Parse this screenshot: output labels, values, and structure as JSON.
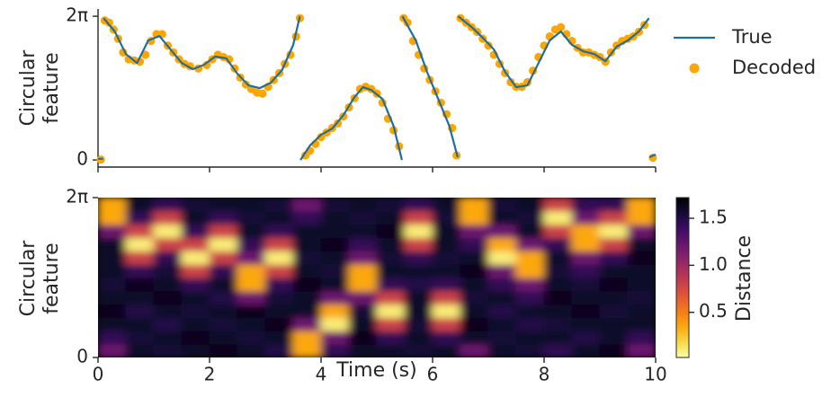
{
  "chart_data": [
    {
      "type": "line",
      "ylabel": [
        "Circular",
        "feature"
      ],
      "xlim": [
        0,
        10
      ],
      "xticks": [
        0,
        2,
        4,
        6,
        8,
        10
      ],
      "ylim": [
        -0.31,
        6.6
      ],
      "yticks": [
        0,
        {
          "value": 6.283,
          "label": "2π"
        }
      ],
      "legend": "outside upper right",
      "series": [
        {
          "name": "True",
          "type": "line",
          "color": "#1f6e9f",
          "x": [
            0.0,
            0.09,
            null,
            0.1,
            0.3,
            0.5,
            0.7,
            0.9,
            1.1,
            1.3,
            1.5,
            1.7,
            1.9,
            2.1,
            2.3,
            2.5,
            2.7,
            2.9,
            3.1,
            3.3,
            3.5,
            3.62,
            null,
            3.63,
            3.8,
            4.0,
            4.2,
            4.4,
            4.6,
            4.75,
            4.9,
            5.1,
            5.3,
            5.45,
            null,
            5.46,
            5.7,
            5.9,
            6.1,
            6.3,
            6.45,
            null,
            6.46,
            6.7,
            6.9,
            7.1,
            7.3,
            7.5,
            7.7,
            7.9,
            8.1,
            8.3,
            8.5,
            8.7,
            8.9,
            9.1,
            9.3,
            9.5,
            9.7,
            9.88,
            null,
            9.89,
            10.0
          ],
          "values": [
            0.05,
            0.05,
            null,
            6.2,
            5.62,
            4.63,
            4.24,
            5.22,
            5.42,
            4.83,
            4.24,
            3.97,
            4.16,
            4.52,
            4.44,
            3.77,
            3.26,
            3.14,
            3.38,
            3.93,
            5.03,
            6.28,
            null,
            0.0,
            0.63,
            1.1,
            1.37,
            1.96,
            2.75,
            3.18,
            3.06,
            2.67,
            1.49,
            0.0,
            null,
            6.28,
            5.22,
            3.85,
            2.67,
            1.49,
            0.12,
            null,
            6.28,
            5.81,
            5.34,
            4.83,
            3.85,
            3.18,
            3.26,
            4.24,
            5.22,
            5.62,
            5.03,
            4.75,
            4.63,
            4.32,
            4.95,
            5.22,
            5.62,
            6.2,
            null,
            0.12,
            0.24
          ]
        },
        {
          "name": "Decoded",
          "type": "scatter",
          "color": "#ffa500",
          "x": [
            0.05,
            0.12,
            0.2,
            0.28,
            0.36,
            0.45,
            0.55,
            0.65,
            0.75,
            0.85,
            0.95,
            1.05,
            1.15,
            1.25,
            1.35,
            1.45,
            1.55,
            1.65,
            1.8,
            1.95,
            2.05,
            2.15,
            2.25,
            2.35,
            2.45,
            2.55,
            2.65,
            2.75,
            2.85,
            2.95,
            3.05,
            3.15,
            3.25,
            3.35,
            3.45,
            3.55,
            3.62,
            3.72,
            3.8,
            3.9,
            4.0,
            4.1,
            4.2,
            4.3,
            4.4,
            4.5,
            4.6,
            4.7,
            4.8,
            4.9,
            5.0,
            5.1,
            5.2,
            5.3,
            5.4,
            5.48,
            5.55,
            5.65,
            5.75,
            5.85,
            5.95,
            6.05,
            6.15,
            6.25,
            6.35,
            6.43,
            6.5,
            6.6,
            6.7,
            6.8,
            6.9,
            7.0,
            7.1,
            7.2,
            7.3,
            7.4,
            7.5,
            7.6,
            7.7,
            7.8,
            7.9,
            8.0,
            8.1,
            8.2,
            8.3,
            8.4,
            8.5,
            8.6,
            8.7,
            8.8,
            8.9,
            9.0,
            9.1,
            9.2,
            9.3,
            9.4,
            9.5,
            9.6,
            9.7,
            9.8,
            9.95
          ],
          "values": [
            0.02,
            6.1,
            6.0,
            5.7,
            5.3,
            4.7,
            4.4,
            4.35,
            4.3,
            4.6,
            5.2,
            5.5,
            5.5,
            5.0,
            4.7,
            4.4,
            4.2,
            4.1,
            4.0,
            4.15,
            4.4,
            4.6,
            4.5,
            4.4,
            4.0,
            3.6,
            3.3,
            3.1,
            2.95,
            2.9,
            3.2,
            3.5,
            3.8,
            4.2,
            4.6,
            5.4,
            6.2,
            0.2,
            0.4,
            0.7,
            1.0,
            1.2,
            1.4,
            1.6,
            1.9,
            2.3,
            2.7,
            3.1,
            3.2,
            3.1,
            2.9,
            2.5,
            1.8,
            1.3,
            0.6,
            6.2,
            6.0,
            5.2,
            4.6,
            4.0,
            3.5,
            3.0,
            2.5,
            2.0,
            1.4,
            0.2,
            6.2,
            6.0,
            5.8,
            5.6,
            5.3,
            5.0,
            4.6,
            4.2,
            3.8,
            3.4,
            3.2,
            3.2,
            3.4,
            3.9,
            4.5,
            5.0,
            5.4,
            5.7,
            5.8,
            5.5,
            5.2,
            4.9,
            4.7,
            4.7,
            4.6,
            4.5,
            4.3,
            4.7,
            5.0,
            5.2,
            5.3,
            5.4,
            5.6,
            5.9,
            0.1
          ]
        }
      ]
    },
    {
      "type": "heatmap",
      "xlabel": "Time (s)",
      "ylabel": [
        "Circular",
        "feature"
      ],
      "xlim": [
        0,
        10
      ],
      "xticks": [
        0,
        2,
        4,
        6,
        8,
        10
      ],
      "ylim": [
        0,
        6.283
      ],
      "yticks": [
        0,
        {
          "value": 6.283,
          "label": "2π"
        }
      ],
      "colormap": "inferno_r",
      "colorbar": {
        "label": "Distance",
        "clim": [
          0.02,
          1.72
        ],
        "ticks": [
          0.5,
          {
            "value": 1,
            "label": "1.0"
          },
          1.5
        ]
      },
      "z": [
        [
          1.2,
          1.6,
          1.55,
          1.6,
          1.65,
          1.6,
          1.5,
          0.35,
          1.45,
          1.6,
          1.6,
          1.55,
          1.6,
          1.2,
          1.6,
          1.55,
          1.45,
          1.6,
          1.65,
          1.2
        ],
        [
          1.45,
          1.55,
          1.6,
          1.65,
          1.6,
          1.55,
          1.6,
          0.35,
          1.2,
          1.65,
          1.45,
          1.6,
          1.45,
          1.6,
          1.55,
          1.6,
          1.6,
          1.5,
          1.6,
          1.45
        ],
        [
          1.6,
          1.6,
          1.5,
          1.6,
          1.55,
          1.6,
          1.65,
          1.2,
          0.1,
          1.6,
          0.8,
          1.55,
          0.8,
          1.65,
          1.6,
          1.5,
          1.55,
          1.6,
          1.6,
          1.6
        ],
        [
          1.65,
          1.5,
          1.6,
          1.55,
          1.6,
          1.65,
          1.6,
          1.6,
          0.35,
          1.55,
          0.1,
          1.6,
          0.1,
          1.6,
          1.5,
          1.6,
          1.6,
          1.65,
          1.55,
          1.6
        ],
        [
          1.6,
          1.6,
          1.65,
          1.6,
          1.5,
          1.2,
          1.55,
          1.6,
          1.2,
          1.2,
          0.8,
          1.6,
          0.8,
          1.55,
          1.6,
          1.45,
          1.65,
          1.6,
          1.6,
          1.55
        ],
        [
          1.55,
          1.65,
          1.6,
          1.45,
          1.6,
          0.35,
          1.45,
          1.65,
          1.6,
          0.35,
          1.45,
          1.5,
          1.45,
          1.6,
          1.45,
          1.2,
          1.6,
          1.55,
          1.65,
          1.6
        ],
        [
          1.6,
          1.45,
          1.55,
          0.8,
          1.45,
          0.35,
          0.8,
          1.6,
          1.55,
          0.35,
          1.6,
          1.6,
          1.6,
          1.65,
          1.2,
          0.35,
          1.55,
          1.45,
          1.6,
          1.6
        ],
        [
          1.6,
          0.8,
          1.45,
          0.1,
          0.8,
          1.2,
          0.1,
          1.55,
          1.6,
          1.2,
          1.55,
          1.45,
          1.55,
          1.6,
          0.1,
          0.35,
          1.6,
          1.2,
          1.45,
          1.65
        ],
        [
          1.6,
          0.1,
          0.8,
          0.8,
          0.1,
          1.45,
          0.8,
          1.6,
          1.65,
          1.45,
          1.6,
          0.8,
          1.6,
          1.45,
          0.35,
          1.2,
          1.45,
          0.35,
          0.8,
          1.6
        ],
        [
          1.2,
          0.8,
          0.1,
          1.45,
          0.8,
          1.6,
          1.45,
          1.6,
          1.6,
          1.6,
          1.65,
          0.1,
          1.6,
          1.2,
          1.2,
          1.6,
          0.8,
          0.35,
          0.1,
          1.2
        ],
        [
          0.35,
          1.45,
          0.8,
          1.6,
          1.45,
          1.55,
          1.6,
          1.45,
          1.6,
          1.55,
          1.6,
          0.8,
          1.55,
          0.35,
          1.6,
          1.55,
          0.1,
          1.2,
          0.8,
          0.35
        ],
        [
          0.35,
          1.6,
          1.45,
          1.55,
          1.6,
          1.6,
          1.55,
          1.2,
          1.55,
          1.6,
          1.55,
          1.45,
          1.6,
          0.35,
          1.55,
          1.6,
          0.8,
          1.45,
          1.45,
          0.35
        ]
      ]
    }
  ]
}
